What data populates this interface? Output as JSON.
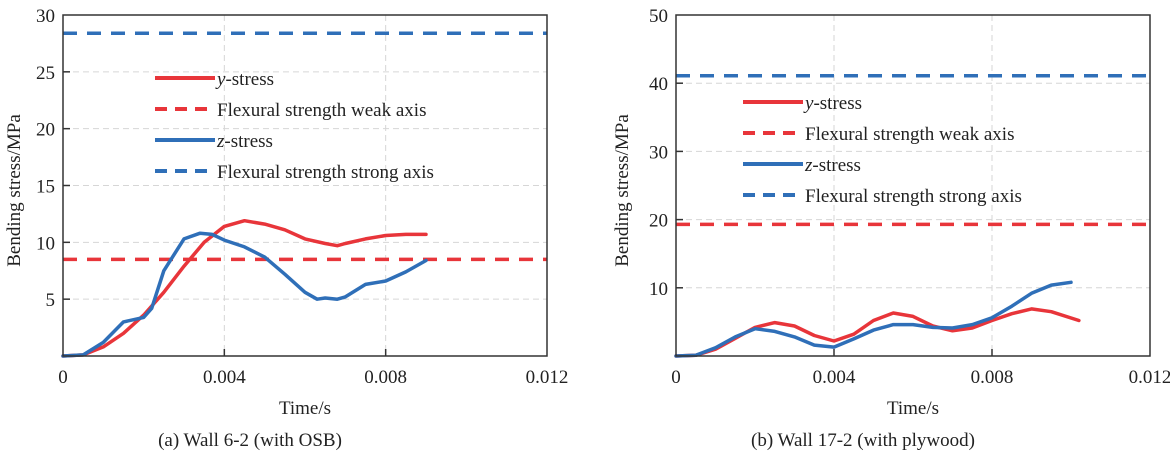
{
  "chart_data": [
    {
      "type": "line",
      "caption": "(a) Wall 6-2 (with OSB)",
      "xlabel": "Time/s",
      "ylabel": "Bending stress/MPa",
      "xlim": [
        0,
        0.012
      ],
      "ylim": [
        0,
        30
      ],
      "xticks": [
        0,
        0.004,
        0.008,
        0.012
      ],
      "xtick_labels": [
        "0",
        "0.004",
        "0.008",
        "0.012"
      ],
      "yticks": [
        5,
        10,
        15,
        20,
        25,
        30
      ],
      "ytick_labels": [
        "5",
        "10",
        "15",
        "20",
        "25",
        "30"
      ],
      "grid": true,
      "legend_position": "upper-center",
      "series": [
        {
          "name": "y-stress",
          "name_italic": "y",
          "name_rest": "-stress",
          "style": "solid",
          "color": "#e8353a",
          "x": [
            0,
            0.0005,
            0.001,
            0.0015,
            0.002,
            0.0025,
            0.003,
            0.0035,
            0.004,
            0.0045,
            0.005,
            0.0055,
            0.006,
            0.0065,
            0.0068,
            0.007,
            0.0075,
            0.008,
            0.0085,
            0.009
          ],
          "y": [
            0,
            0.1,
            0.8,
            2.0,
            3.6,
            5.6,
            7.9,
            10.0,
            11.4,
            11.9,
            11.6,
            11.1,
            10.3,
            9.9,
            9.7,
            9.9,
            10.3,
            10.6,
            10.7,
            10.7
          ]
        },
        {
          "name": "Flexural strength weak axis",
          "style": "dashed",
          "color": "#e8353a",
          "x": [
            0,
            0.012
          ],
          "y": [
            8.5,
            8.5
          ]
        },
        {
          "name": "z-stress",
          "name_italic": "z",
          "name_rest": "-stress",
          "style": "solid",
          "color": "#2f6fb8",
          "x": [
            0,
            0.0005,
            0.001,
            0.0015,
            0.002,
            0.0022,
            0.0025,
            0.003,
            0.0034,
            0.0037,
            0.004,
            0.0045,
            0.005,
            0.0055,
            0.006,
            0.0063,
            0.0065,
            0.0068,
            0.007,
            0.0075,
            0.008,
            0.0085,
            0.009
          ],
          "y": [
            0,
            0.1,
            1.2,
            3.0,
            3.4,
            4.2,
            7.5,
            10.3,
            10.8,
            10.7,
            10.2,
            9.6,
            8.7,
            7.2,
            5.6,
            5.0,
            5.1,
            5.0,
            5.2,
            6.3,
            6.6,
            7.4,
            8.4
          ]
        },
        {
          "name": "Flexural strength strong axis",
          "style": "dashed",
          "color": "#2f6fb8",
          "x": [
            0,
            0.012
          ],
          "y": [
            28.4,
            28.4
          ]
        }
      ]
    },
    {
      "type": "line",
      "caption": "(b) Wall 17-2 (with plywood)",
      "xlabel": "Time/s",
      "ylabel": "Bending stress/MPa",
      "xlim": [
        0,
        0.012
      ],
      "ylim": [
        0,
        50
      ],
      "xticks": [
        0,
        0.004,
        0.008,
        0.012
      ],
      "xtick_labels": [
        "0",
        "0.004",
        "0.008",
        "0.012"
      ],
      "yticks": [
        10,
        20,
        30,
        40,
        50
      ],
      "ytick_labels": [
        "10",
        "20",
        "30",
        "40",
        "50"
      ],
      "grid": true,
      "legend_position": "upper-center",
      "series": [
        {
          "name": "y-stress",
          "name_italic": "y",
          "name_rest": "-stress",
          "style": "solid",
          "color": "#e8353a",
          "x": [
            0,
            0.0005,
            0.001,
            0.0015,
            0.002,
            0.0025,
            0.003,
            0.0035,
            0.004,
            0.0045,
            0.005,
            0.0055,
            0.006,
            0.0065,
            0.007,
            0.0075,
            0.008,
            0.0085,
            0.009,
            0.0095,
            0.0102
          ],
          "y": [
            0,
            0.1,
            1.0,
            2.6,
            4.2,
            4.9,
            4.4,
            3.0,
            2.2,
            3.2,
            5.2,
            6.3,
            5.8,
            4.4,
            3.7,
            4.1,
            5.2,
            6.2,
            6.9,
            6.5,
            5.2
          ]
        },
        {
          "name": "Flexural strength weak axis",
          "style": "dashed",
          "color": "#e8353a",
          "x": [
            0,
            0.012
          ],
          "y": [
            19.3,
            19.3
          ]
        },
        {
          "name": "z-stress",
          "name_italic": "z",
          "name_rest": "-stress",
          "style": "solid",
          "color": "#2f6fb8",
          "x": [
            0,
            0.0005,
            0.001,
            0.0015,
            0.002,
            0.0025,
            0.003,
            0.0035,
            0.004,
            0.0045,
            0.005,
            0.0055,
            0.006,
            0.0065,
            0.007,
            0.0075,
            0.008,
            0.0085,
            0.009,
            0.0095,
            0.01
          ],
          "y": [
            0,
            0.1,
            1.2,
            2.8,
            4.0,
            3.6,
            2.8,
            1.6,
            1.3,
            2.5,
            3.8,
            4.6,
            4.6,
            4.2,
            4.1,
            4.6,
            5.6,
            7.3,
            9.2,
            10.4,
            10.8
          ]
        },
        {
          "name": "Flexural strength strong axis",
          "style": "dashed",
          "color": "#2f6fb8",
          "x": [
            0,
            0.012
          ],
          "y": [
            41.1,
            41.1
          ]
        }
      ]
    }
  ]
}
